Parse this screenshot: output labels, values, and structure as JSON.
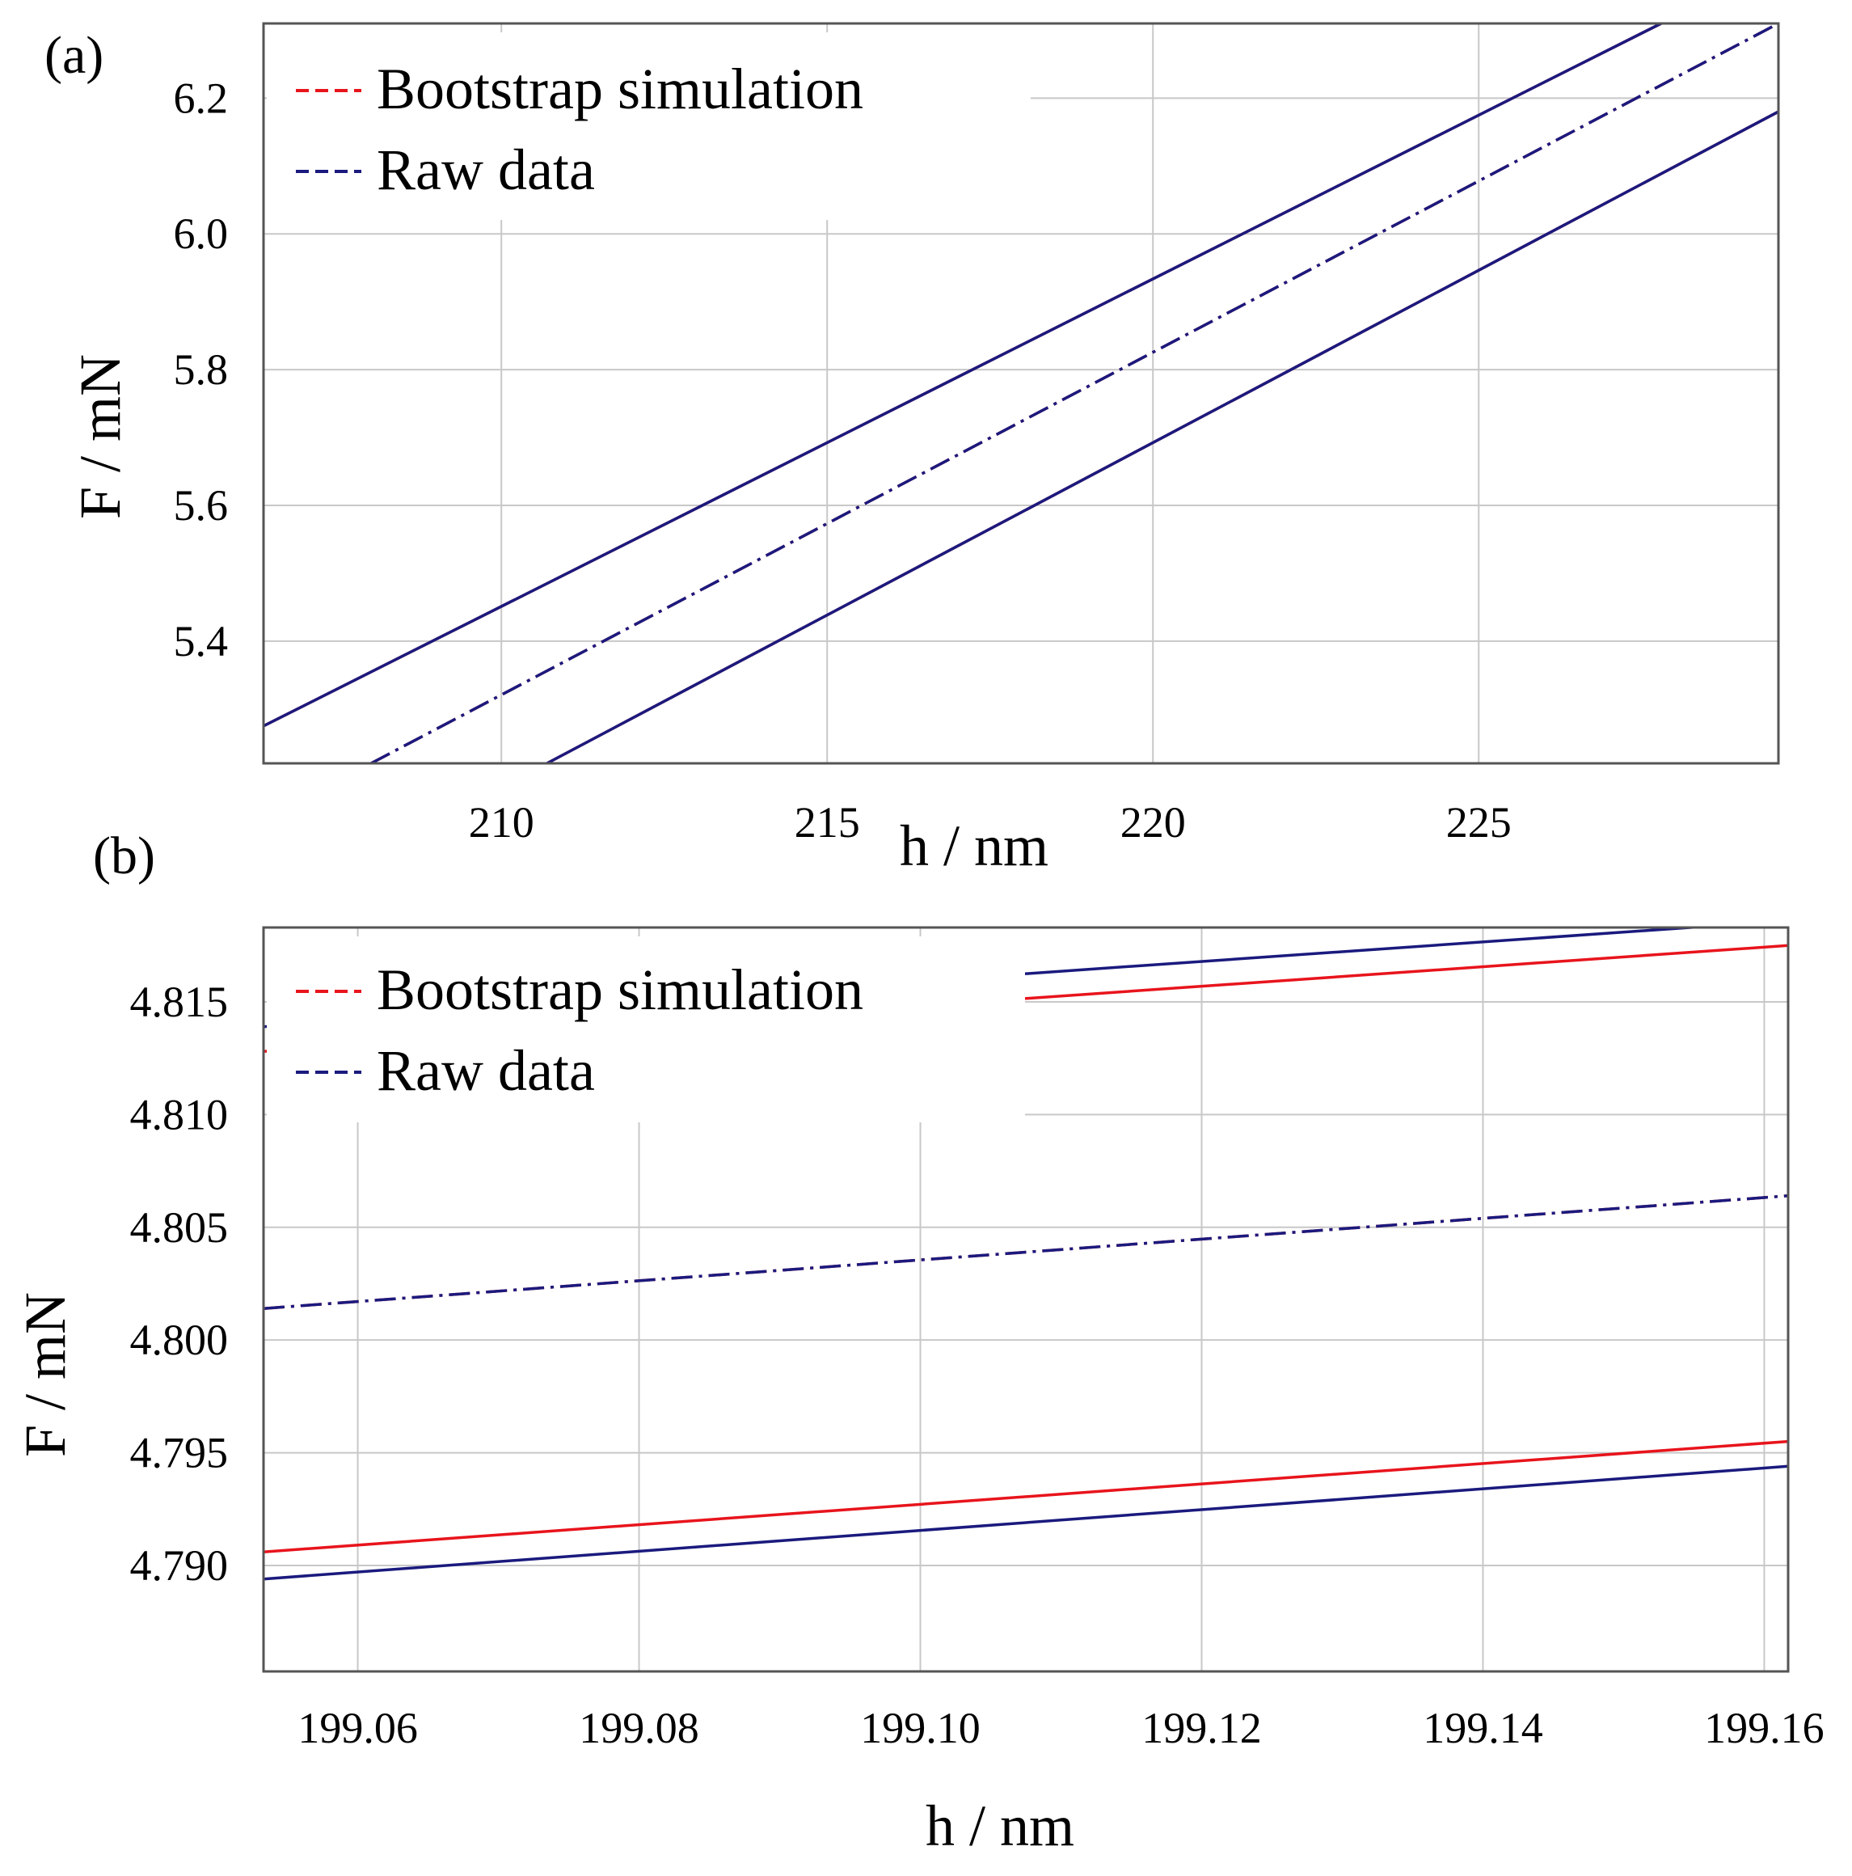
{
  "chart_data": [
    {
      "type": "line",
      "panel_label": "(a)",
      "xlabel": "h / nm",
      "ylabel": "F / mN",
      "xlim": [
        206.35,
        229.6
      ],
      "ylim": [
        5.22,
        6.31
      ],
      "grid": true,
      "x_ticks": [
        210,
        215,
        220,
        225
      ],
      "x_tick_labels": [
        "210",
        "215",
        "220",
        "225"
      ],
      "y_ticks": [
        5.4,
        5.6,
        5.8,
        6.0,
        6.2
      ],
      "y_tick_labels": [
        "5.4",
        "5.6",
        "5.8",
        "6.0",
        "6.2"
      ],
      "legend": {
        "position": "top-left",
        "entries": [
          {
            "label": "Bootstrap simulation",
            "color": "#e8141c",
            "style": "dashed"
          },
          {
            "label": "Raw data",
            "color": "#1a1a7e",
            "style": "dashed"
          }
        ]
      },
      "series": [
        {
          "name": "Bootstrap simulation upper",
          "color": "#e8141c",
          "style": "solid",
          "x": [
            206.35,
            227.8
          ],
          "y": [
            5.275,
            6.31
          ]
        },
        {
          "name": "Raw data upper",
          "color": "#1a1a7e",
          "style": "solid",
          "x": [
            206.35,
            227.8
          ],
          "y": [
            5.275,
            6.31
          ]
        },
        {
          "name": "Bootstrap simulation mean",
          "color": "#e8141c",
          "style": "dashdot",
          "x": [
            208.0,
            229.6
          ],
          "y": [
            5.22,
            6.31
          ]
        },
        {
          "name": "Raw data mean",
          "color": "#1a1a7e",
          "style": "dashdot",
          "x": [
            208.0,
            229.6
          ],
          "y": [
            5.22,
            6.31
          ]
        },
        {
          "name": "Bootstrap simulation lower",
          "color": "#e8141c",
          "style": "solid",
          "x": [
            210.7,
            229.6
          ],
          "y": [
            5.22,
            6.18
          ]
        },
        {
          "name": "Raw data lower",
          "color": "#1a1a7e",
          "style": "solid",
          "x": [
            210.7,
            229.6
          ],
          "y": [
            5.22,
            6.18
          ]
        }
      ]
    },
    {
      "type": "line",
      "panel_label": "(b)",
      "xlabel": "h / nm",
      "ylabel": "F / mN",
      "xlim": [
        199.0533,
        199.1617
      ],
      "ylim": [
        4.7853,
        4.8183
      ],
      "grid": true,
      "x_ticks": [
        199.06,
        199.08,
        199.1,
        199.12,
        199.14,
        199.16
      ],
      "x_tick_labels": [
        "199.06",
        "199.08",
        "199.10",
        "199.12",
        "199.14",
        "199.16"
      ],
      "y_ticks": [
        4.79,
        4.795,
        4.8,
        4.805,
        4.81,
        4.815
      ],
      "y_tick_labels": [
        "4.790",
        "4.795",
        "4.800",
        "4.805",
        "4.810",
        "4.815"
      ],
      "legend": {
        "position": "top-left",
        "entries": [
          {
            "label": "Bootstrap simulation",
            "color": "#e8141c",
            "style": "dashed"
          },
          {
            "label": "Raw data",
            "color": "#1a1a7e",
            "style": "dashed"
          }
        ]
      },
      "series": [
        {
          "name": "Raw data upper",
          "color": "#1a1a7e",
          "style": "solid",
          "x": [
            199.0533,
            199.1617
          ],
          "y": [
            4.8139,
            4.8186
          ]
        },
        {
          "name": "Bootstrap simulation upper",
          "color": "#e8141c",
          "style": "solid",
          "x": [
            199.0533,
            199.1617
          ],
          "y": [
            4.8128,
            4.8175
          ]
        },
        {
          "name": "Bootstrap simulation mean",
          "color": "#e8141c",
          "style": "dashdot",
          "x": [
            199.0533,
            199.1617
          ],
          "y": [
            4.8014,
            4.8064
          ]
        },
        {
          "name": "Raw data mean",
          "color": "#1a1a7e",
          "style": "dashdot",
          "x": [
            199.0533,
            199.1617
          ],
          "y": [
            4.8014,
            4.8064
          ]
        },
        {
          "name": "Bootstrap simulation lower",
          "color": "#e8141c",
          "style": "solid",
          "x": [
            199.0533,
            199.1617
          ],
          "y": [
            4.7906,
            4.7955
          ]
        },
        {
          "name": "Raw data lower",
          "color": "#1a1a7e",
          "style": "solid",
          "x": [
            199.0533,
            199.1617
          ],
          "y": [
            4.7894,
            4.7944
          ]
        }
      ]
    }
  ]
}
